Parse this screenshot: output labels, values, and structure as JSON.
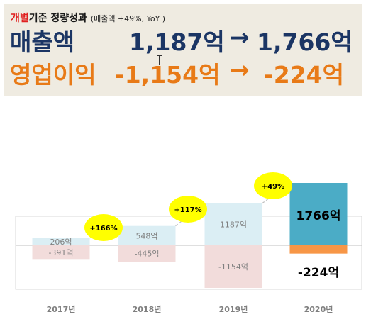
{
  "summary": {
    "subtitle_highlight": "개별",
    "subtitle_rest": "기준 정량성과",
    "subtitle_note": "(매출액 +49%, YoY )",
    "revenue": {
      "label": "매출액",
      "from": "1,187억",
      "arrow": "→",
      "to": "1,766억"
    },
    "operating_income": {
      "label": "영업이익",
      "from": "-1,154억",
      "arrow": "→",
      "to": "-224억"
    }
  },
  "chart_data": {
    "type": "bar",
    "categories": [
      "2017년",
      "2018년",
      "2019년",
      "2020년"
    ],
    "series": [
      {
        "name": "매출액",
        "values": [
          206,
          548,
          1187,
          1766
        ],
        "labels": [
          "206억",
          "548억",
          "1187억",
          "1766억"
        ]
      },
      {
        "name": "영업이익",
        "values": [
          -391,
          -445,
          -1154,
          -224
        ],
        "labels": [
          "-391억",
          "-445억",
          "-1154억",
          "-224억"
        ]
      }
    ],
    "growth_annotations": [
      "+166%",
      "+117%",
      "+49%"
    ],
    "colors": {
      "revenue_past": "#dbeef4",
      "revenue_current": "#4bacc6",
      "income_past": "#f2dcdb",
      "income_current": "#f79646",
      "growth_bubble": "#ffff00"
    },
    "grid": false,
    "legend": "none"
  }
}
